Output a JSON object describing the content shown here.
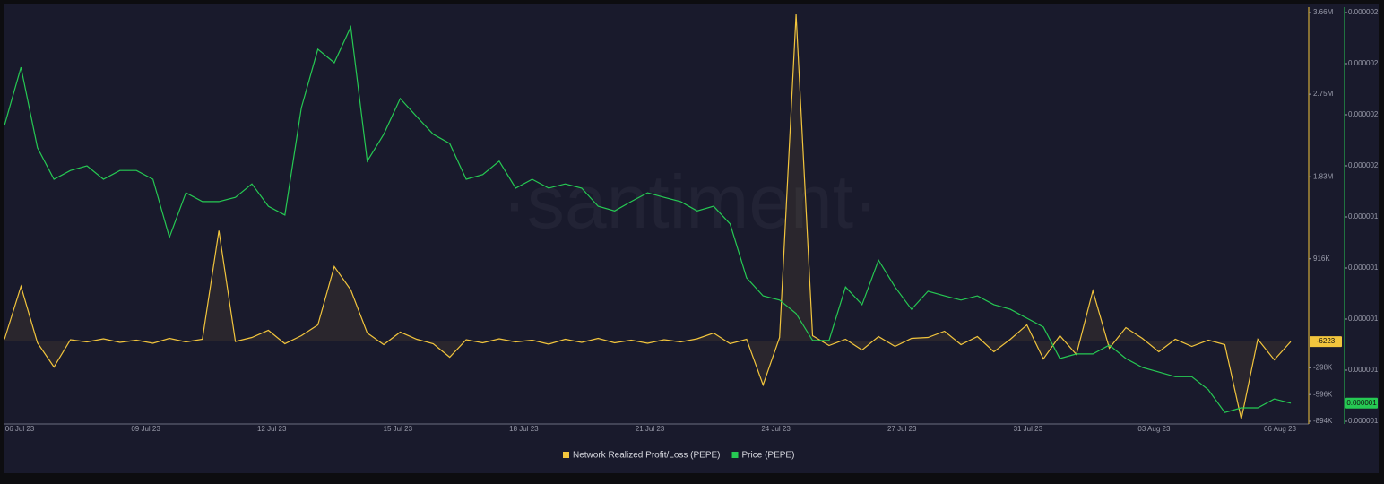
{
  "chart_data": {
    "type": "line",
    "watermark": "·santiment·",
    "xticks": [
      "06 Jul 23",
      "09 Jul 23",
      "12 Jul 23",
      "15 Jul 23",
      "18 Jul 23",
      "21 Jul 23",
      "24 Jul 23",
      "27 Jul 23",
      "31 Jul 23",
      "03 Aug 23",
      "06 Aug 23"
    ],
    "ylim": [
      -894000,
      3660000
    ],
    "yticks": [
      {
        "value": 3660000,
        "label": "3.66M"
      },
      {
        "value": 2750000,
        "label": "2.75M"
      },
      {
        "value": 1830000,
        "label": "1.83M"
      },
      {
        "value": 916000,
        "label": "916K"
      },
      {
        "value": -298000,
        "label": "-298K"
      },
      {
        "value": -596000,
        "label": "-596K"
      },
      {
        "value": -894000,
        "label": "-894K"
      }
    ],
    "y2lim": [
      1.05e-06,
      1.93e-06
    ],
    "y2ticks": [
      {
        "value": 1.93e-06,
        "label": "0.000002"
      },
      {
        "value": 1.82e-06,
        "label": "0.000002"
      },
      {
        "value": 1.71e-06,
        "label": "0.000002"
      },
      {
        "value": 1.6e-06,
        "label": "0.000002"
      },
      {
        "value": 1.49e-06,
        "label": "0.000001"
      },
      {
        "value": 1.38e-06,
        "label": "0.000001"
      },
      {
        "value": 1.27e-06,
        "label": "0.000001"
      },
      {
        "value": 1.16e-06,
        "label": "0.000001"
      },
      {
        "value": 1.05e-06,
        "label": "0.000001"
      }
    ],
    "series": [
      {
        "name": "Network Realized Profit/Loss (PEPE)",
        "color": "#f2c53d",
        "values": [
          20000,
          610000,
          -20000,
          -290000,
          15000,
          -10000,
          25000,
          -15000,
          10000,
          -25000,
          30000,
          -10000,
          20000,
          1230000,
          -5000,
          40000,
          120000,
          -30000,
          60000,
          180000,
          830000,
          570000,
          90000,
          -40000,
          100000,
          20000,
          -30000,
          -180000,
          15000,
          -20000,
          25000,
          -10000,
          10000,
          -35000,
          20000,
          -15000,
          30000,
          -20000,
          10000,
          -25000,
          15000,
          -10000,
          25000,
          90000,
          -30000,
          20000,
          -490000,
          40000,
          3640000,
          60000,
          -50000,
          20000,
          -100000,
          50000,
          -60000,
          30000,
          40000,
          110000,
          -40000,
          50000,
          -120000,
          20000,
          180000,
          -200000,
          60000,
          -150000,
          560000,
          -80000,
          150000,
          30000,
          -120000,
          20000,
          -60000,
          10000,
          -40000,
          -870000,
          20000,
          -210000,
          -6223
        ]
      },
      {
        "name": "Price (PEPE)",
        "color": "#26c953",
        "axis": "y2",
        "values": [
          1.687e-06,
          1.812e-06,
          1.639e-06,
          1.571e-06,
          1.59e-06,
          1.6e-06,
          1.571e-06,
          1.59e-06,
          1.59e-06,
          1.571e-06,
          1.446e-06,
          1.542e-06,
          1.523e-06,
          1.523e-06,
          1.532e-06,
          1.561e-06,
          1.513e-06,
          1.494e-06,
          1.725e-06,
          1.851e-06,
          1.822e-06,
          1.899e-06,
          1.61e-06,
          1.668e-06,
          1.745e-06,
          1.706e-06,
          1.668e-06,
          1.648e-06,
          1.571e-06,
          1.581e-06,
          1.61e-06,
          1.552e-06,
          1.571e-06,
          1.552e-06,
          1.561e-06,
          1.552e-06,
          1.513e-06,
          1.503e-06,
          1.523e-06,
          1.542e-06,
          1.532e-06,
          1.523e-06,
          1.503e-06,
          1.513e-06,
          1.475e-06,
          1.359e-06,
          1.32e-06,
          1.311e-06,
          1.282e-06,
          1.224e-06,
          1.224e-06,
          1.339e-06,
          1.301e-06,
          1.397e-06,
          1.339e-06,
          1.291e-06,
          1.33e-06,
          1.32e-06,
          1.311e-06,
          1.32e-06,
          1.301e-06,
          1.291e-06,
          1.272e-06,
          1.253e-06,
          1.185e-06,
          1.195e-06,
          1.195e-06,
          1.214e-06,
          1.185e-06,
          1.166e-06,
          1.156e-06,
          1.146e-06,
          1.146e-06,
          1.118e-06,
          1.069e-06,
          1.079e-06,
          1.079e-06,
          1.098e-06,
          1.089e-06
        ],
        "value_labels": [
          null,
          null,
          null,
          null,
          null,
          null,
          null,
          null,
          null,
          null,
          null,
          null,
          null,
          null,
          null,
          null,
          null,
          null,
          null,
          null,
          null,
          null,
          null,
          null,
          null,
          null,
          null,
          null,
          null,
          null,
          null,
          null,
          null,
          null,
          null,
          null,
          null,
          null,
          null,
          null,
          null,
          null,
          null,
          null,
          null,
          null,
          null,
          null,
          null,
          null,
          null,
          null,
          null,
          null,
          null,
          null,
          null,
          null,
          null,
          null,
          null,
          null,
          null,
          null,
          null,
          null,
          null,
          null,
          null,
          null,
          null,
          null,
          null,
          null,
          null,
          null,
          null,
          null,
          "0.000001"
        ]
      }
    ]
  }
}
